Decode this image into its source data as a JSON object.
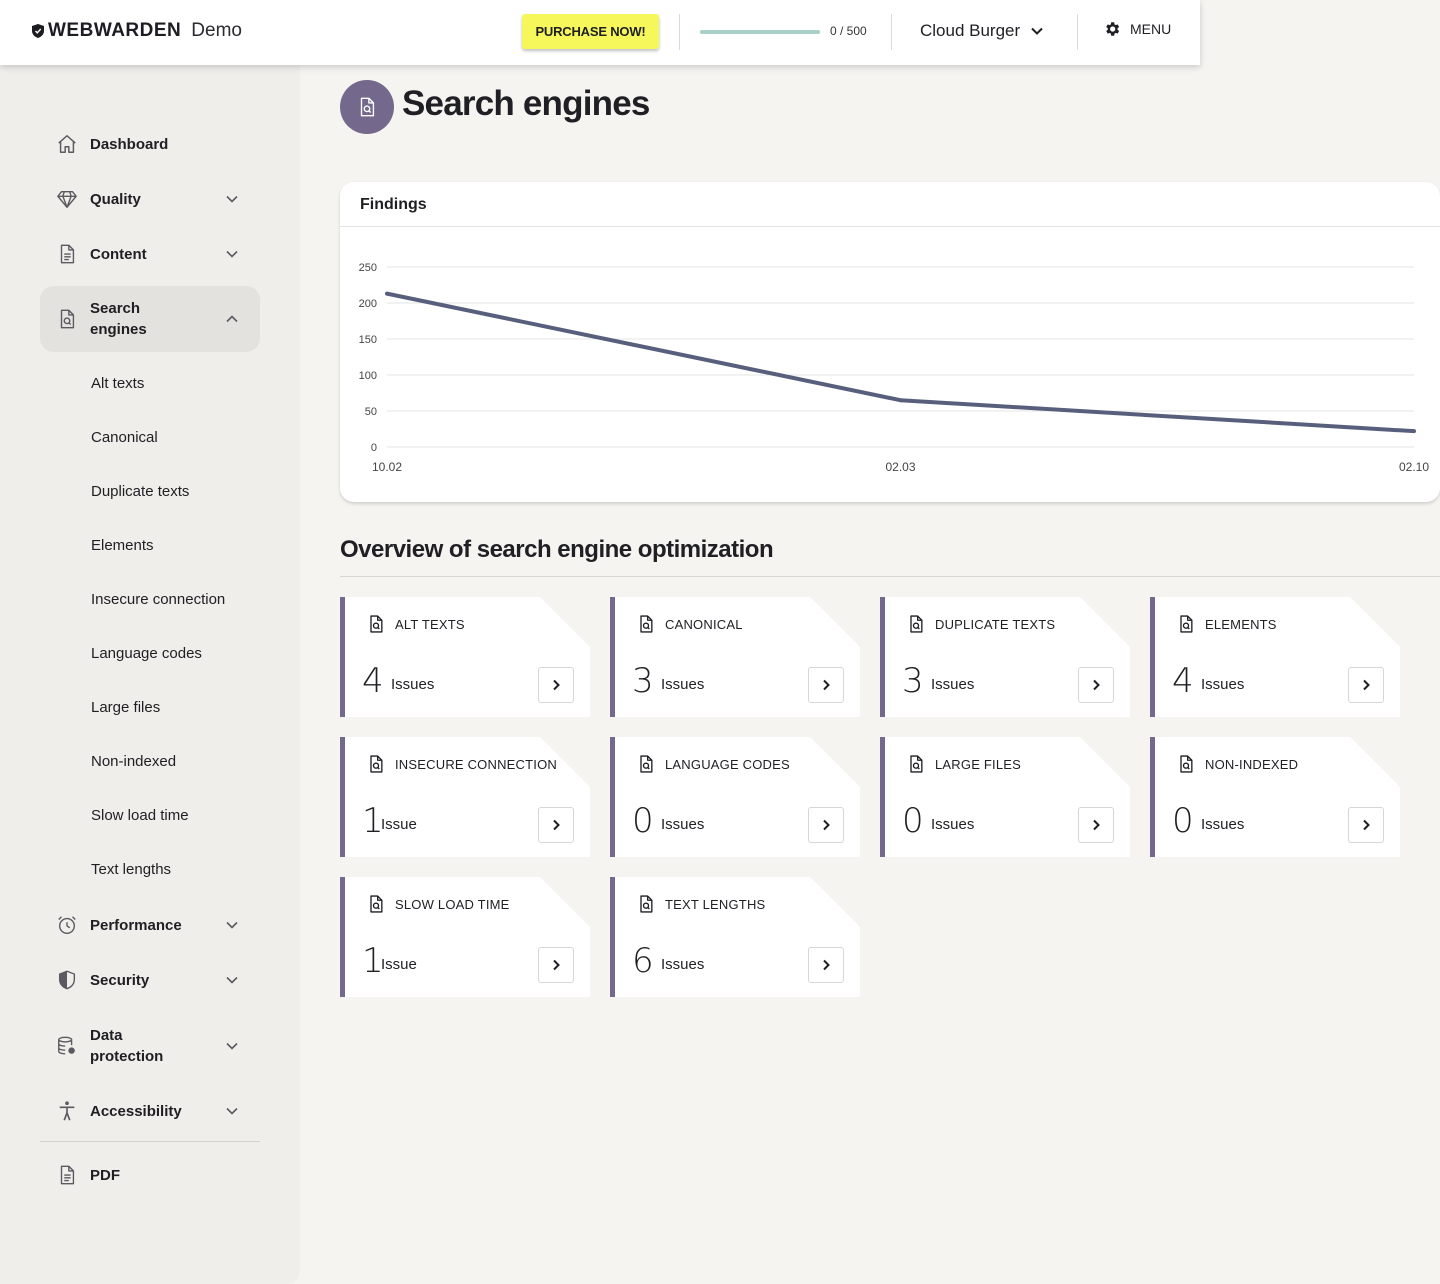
{
  "header": {
    "brand": "WEBWARDEN",
    "brand_suffix": "Demo",
    "purchase_label": "PURCHASE NOW!",
    "quota_text": "0 / 500",
    "quota_fraction": 0.999,
    "project_name": "Cloud Burger",
    "menu_label": "MENU"
  },
  "sidebar": {
    "items": [
      {
        "label": "Dashboard",
        "icon": "home-icon"
      },
      {
        "label": "Quality",
        "icon": "diamond-icon"
      },
      {
        "label": "Content",
        "icon": "document-icon"
      },
      {
        "label": "Search\nengines",
        "icon": "search-document-icon"
      },
      {
        "label": "Performance",
        "icon": "alarm-clock-icon"
      },
      {
        "label": "Security",
        "icon": "shield-icon"
      },
      {
        "label": "Data\nprotection",
        "icon": "database-lock-icon"
      },
      {
        "label": "Accessibility",
        "icon": "accessibility-icon"
      },
      {
        "label": "PDF",
        "icon": "pdf-icon"
      }
    ],
    "sub_items": [
      "Alt texts",
      "Canonical",
      "Duplicate texts",
      "Elements",
      "Insecure connection",
      "Language codes",
      "Large files",
      "Non-indexed",
      "Slow load time",
      "Text lengths"
    ]
  },
  "page": {
    "title": "Search engines",
    "findings_title": "Findings",
    "overview_title": "Overview of search engine optimization"
  },
  "chart_data": {
    "type": "line",
    "title": "Findings",
    "x": [
      "10.02",
      "02.03",
      "02.10"
    ],
    "series": [
      {
        "values": [
          213,
          65,
          22
        ]
      }
    ],
    "y_ticks": [
      0,
      50,
      100,
      150,
      200,
      250
    ],
    "ylim": [
      0,
      250
    ],
    "grid": true,
    "line_color": "#585f7c"
  },
  "cards": [
    {
      "title": "ALT TEXTS",
      "count": "4",
      "unit": "Issues"
    },
    {
      "title": "CANONICAL",
      "count": "3",
      "unit": "Issues"
    },
    {
      "title": "DUPLICATE TEXTS",
      "count": "3",
      "unit": "Issues"
    },
    {
      "title": "ELEMENTS",
      "count": "4",
      "unit": "Issues"
    },
    {
      "title": "INSECURE CONNECTION",
      "count": "1",
      "unit": "Issue"
    },
    {
      "title": "LANGUAGE CODES",
      "count": "0",
      "unit": "Issues"
    },
    {
      "title": "LARGE FILES",
      "count": "0",
      "unit": "Issues"
    },
    {
      "title": "NON-INDEXED",
      "count": "0",
      "unit": "Issues"
    },
    {
      "title": "SLOW LOAD TIME",
      "count": "1",
      "unit": "Issue"
    },
    {
      "title": "TEXT LENGTHS",
      "count": "6",
      "unit": "Issues"
    }
  ],
  "colors": {
    "accent": "#74688d",
    "purchase": "#f6f75a",
    "quota": "#a8d0c7"
  }
}
